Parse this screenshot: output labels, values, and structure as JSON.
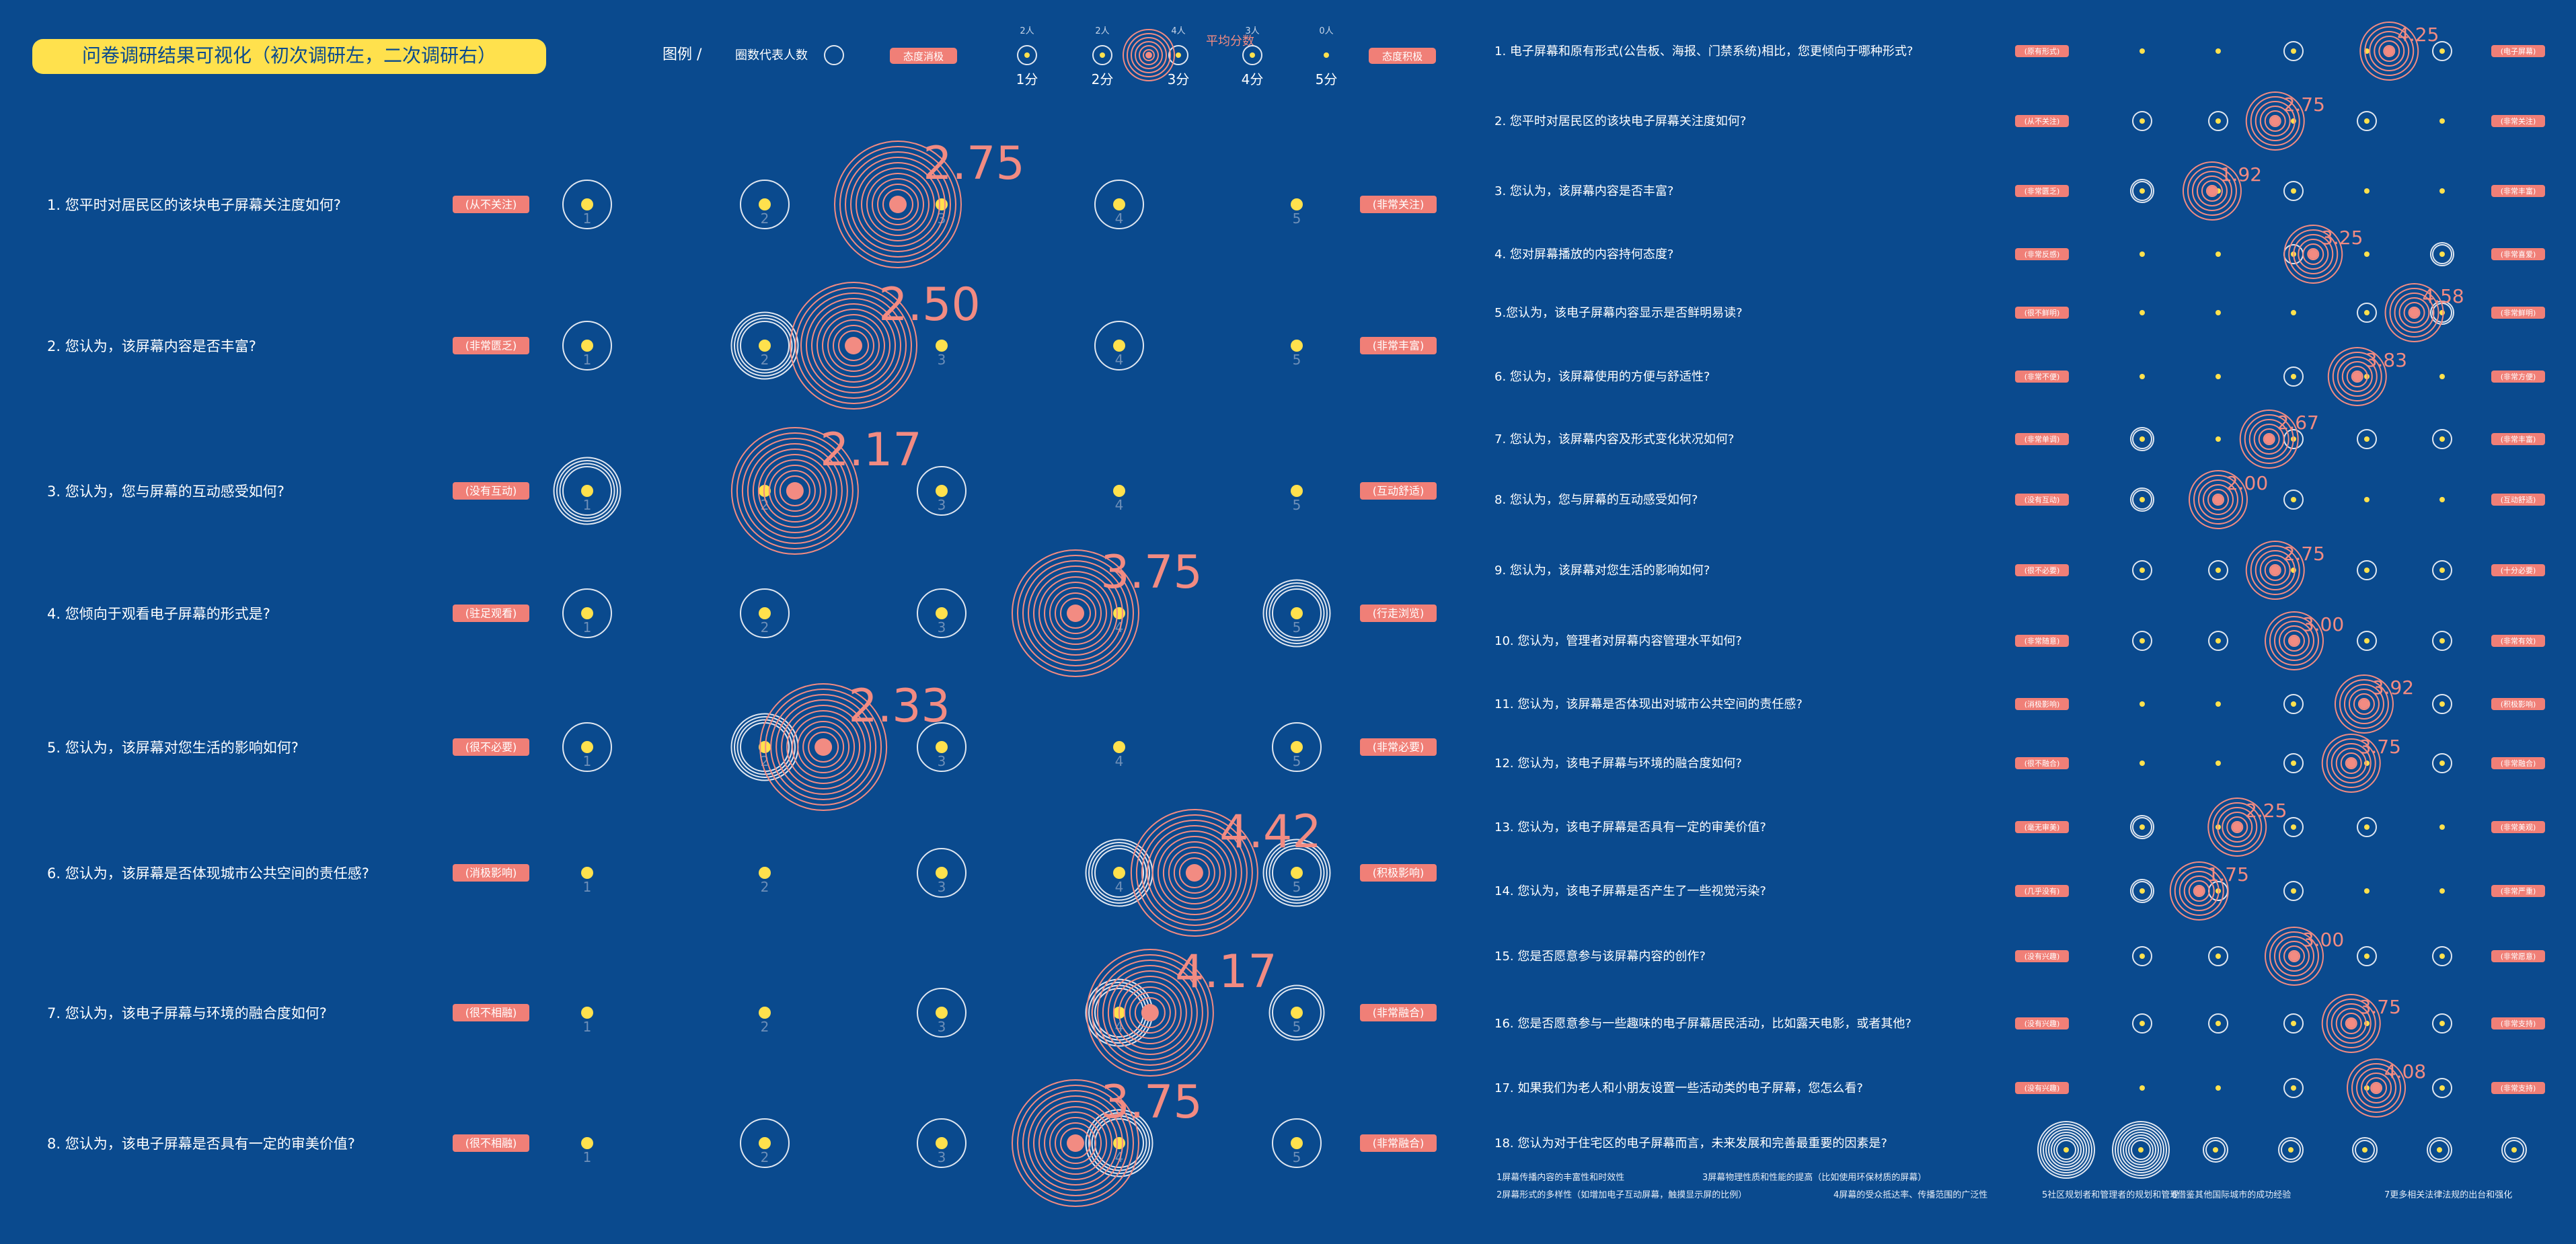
{
  "title": "问卷调研结果可视化（初次调研左，二次调研右）",
  "legend": {
    "label": "图例 /",
    "people_text": "圈数代表人数",
    "neg_label": "态度消极",
    "pos_label": "态度积极",
    "avg_label": "平均分数",
    "score_labels": [
      "1分",
      "2分",
      "3分",
      "4分",
      "5分"
    ],
    "people_labels": [
      "2人",
      "2人",
      "4人",
      "3人",
      "0人"
    ]
  },
  "colors": {
    "background": "#0a4a8e",
    "dot": "#ffe14d",
    "ring_white": "#dfe6f0",
    "ring_salmon": "#f28b82",
    "tag": "#f07f77",
    "title_bg": "#ffe14d",
    "title_text": "#0a4a8e"
  },
  "chart_data": [
    {
      "type": "scatter",
      "title": "初次调研",
      "x_ticks": [
        "1",
        "2",
        "3",
        "4",
        "5"
      ],
      "questions": [
        {
          "label": "1. 您平时对居民区的该块电子屏幕关注度如何?",
          "neg": "(从不关注)",
          "pos": "(非常关注)",
          "counts": [
            1,
            1,
            0,
            1,
            0
          ],
          "avg_rings": 10,
          "avg": 2.75,
          "avg_label": "2.75"
        },
        {
          "label": "2. 您认为，该屏幕内容是否丰富?",
          "neg": "(非常匮乏)",
          "pos": "(非常丰富)",
          "counts": [
            1,
            4,
            0,
            1,
            0
          ],
          "avg_rings": 10,
          "avg": 2.5,
          "avg_label": "2.50"
        },
        {
          "label": "3. 您认为，您与屏幕的互动感受如何?",
          "neg": "(没有互动)",
          "pos": "(互动舒适)",
          "counts": [
            4,
            0,
            1,
            0,
            0
          ],
          "avg_rings": 10,
          "avg": 2.17,
          "avg_label": "2.17"
        },
        {
          "label": "4. 您倾向于观看电子屏幕的形式是?",
          "neg": "(驻足观看)",
          "pos": "(行走浏览)",
          "counts": [
            1,
            1,
            1,
            0,
            4
          ],
          "avg_rings": 10,
          "avg": 3.75,
          "avg_label": "3.75"
        },
        {
          "label": "5. 您认为，该屏幕对您生活的影响如何?",
          "neg": "(很不必要)",
          "pos": "(非常必要)",
          "counts": [
            1,
            4,
            1,
            0,
            1
          ],
          "avg_rings": 10,
          "avg": 2.33,
          "avg_label": "2.33"
        },
        {
          "label": "6. 您认为，该屏幕是否体现城市公共空间的责任感?",
          "neg": "(消极影响)",
          "pos": "(积极影响)",
          "counts": [
            0,
            0,
            1,
            4,
            4
          ],
          "avg_rings": 10,
          "avg": 4.42,
          "avg_label": "4.42"
        },
        {
          "label": "7. 您认为，该电子屏幕与环境的融合度如何?",
          "neg": "(很不相融)",
          "pos": "(非常融合)",
          "counts": [
            0,
            0,
            1,
            4,
            2
          ],
          "avg_rings": 10,
          "avg": 4.17,
          "avg_label": "4.17"
        },
        {
          "label": "8. 您认为，该电子屏幕是否具有一定的审美价值?",
          "neg": "(很不相融)",
          "pos": "(非常融合)",
          "counts": [
            0,
            1,
            1,
            4,
            1
          ],
          "avg_rings": 10,
          "avg": 3.75,
          "avg_label": "3.75"
        }
      ]
    },
    {
      "type": "scatter",
      "title": "二次调研",
      "x_ticks": [
        "1",
        "2",
        "3",
        "4",
        "5",
        "6",
        "7"
      ],
      "questions": [
        {
          "label": "1. 电子屏幕和原有形式(公告板、海报、门禁系统)相比，您更倾向于哪种形式?",
          "neg": "(原有形式)",
          "pos": "(电子屏幕)",
          "counts": [
            0,
            0,
            1,
            0,
            1
          ],
          "avg_rings": 6,
          "avg": 4.25,
          "avg_label": "4.25"
        },
        {
          "label": "2. 您平时对居民区的该块电子屏幕关注度如何?",
          "neg": "(从不关注)",
          "pos": "(非常关注)",
          "counts": [
            1,
            1,
            0,
            1,
            0
          ],
          "avg_rings": 6,
          "avg": 2.75,
          "avg_label": "2.75"
        },
        {
          "label": "3. 您认为，该屏幕内容是否丰富?",
          "neg": "(非常匮乏)",
          "pos": "(非常丰富)",
          "counts": [
            2,
            0,
            1,
            0,
            0
          ],
          "avg_rings": 6,
          "avg": 1.92,
          "avg_label": "1.92"
        },
        {
          "label": "4. 您对屏幕播放的内容持何态度?",
          "neg": "(非常反感)",
          "pos": "(非常喜爱)",
          "counts": [
            0,
            0,
            1,
            0,
            2
          ],
          "avg_rings": 6,
          "avg": 3.25,
          "avg_label": "3.25"
        },
        {
          "label": "5.您认为，该电子屏幕内容显示是否鲜明易读?",
          "neg": "(很不鲜明)",
          "pos": "(非常鲜明)",
          "counts": [
            0,
            0,
            0,
            1,
            2
          ],
          "avg_rings": 6,
          "avg": 4.58,
          "avg_label": "4.58"
        },
        {
          "label": "6. 您认为，该屏幕使用的方便与舒适性?",
          "neg": "(非常不便)",
          "pos": "(非常方便)",
          "counts": [
            0,
            0,
            1,
            0,
            0
          ],
          "avg_rings": 6,
          "avg": 3.83,
          "avg_label": "3.83"
        },
        {
          "label": "7. 您认为，该屏幕内容及形式变化状况如何?",
          "neg": "(非常单调)",
          "pos": "(非常丰富)",
          "counts": [
            2,
            0,
            1,
            1,
            1
          ],
          "avg_rings": 6,
          "avg": 2.67,
          "avg_label": "2.67"
        },
        {
          "label": "8. 您认为，您与屏幕的互动感受如何?",
          "neg": "(没有互动)",
          "pos": "(互动舒适)",
          "counts": [
            2,
            0,
            1,
            0,
            0
          ],
          "avg_rings": 6,
          "avg": 2.0,
          "avg_label": "2.00"
        },
        {
          "label": "9. 您认为，该屏幕对您生活的影响如何?",
          "neg": "(很不必要)",
          "pos": "(十分必要)",
          "counts": [
            1,
            1,
            0,
            1,
            1
          ],
          "avg_rings": 6,
          "avg": 2.75,
          "avg_label": "2.75"
        },
        {
          "label": "10. 您认为，管理者对屏幕内容管理水平如何?",
          "neg": "(非常随意)",
          "pos": "(非常有效)",
          "counts": [
            1,
            1,
            0,
            1,
            1
          ],
          "avg_rings": 6,
          "avg": 3.0,
          "avg_label": "3.00"
        },
        {
          "label": "11. 您认为，该屏幕是否体现出对城市公共空间的责任感?",
          "neg": "(消极影响)",
          "pos": "(积极影响)",
          "counts": [
            0,
            0,
            1,
            0,
            1
          ],
          "avg_rings": 6,
          "avg": 3.92,
          "avg_label": "3.92"
        },
        {
          "label": "12. 您认为，该电子屏幕与环境的融合度如何?",
          "neg": "(很不融合)",
          "pos": "(非常融合)",
          "counts": [
            0,
            0,
            1,
            0,
            1
          ],
          "avg_rings": 6,
          "avg": 3.75,
          "avg_label": "3.75"
        },
        {
          "label": "13. 您认为，该电子屏幕是否具有一定的审美价值?",
          "neg": "(毫无审美)",
          "pos": "(非常美观)",
          "counts": [
            2,
            0,
            1,
            1,
            0
          ],
          "avg_rings": 6,
          "avg": 2.25,
          "avg_label": "2.25"
        },
        {
          "label": "14. 您认为，该电子屏幕是否产生了一些视觉污染?",
          "neg": "(几乎没有)",
          "pos": "(非常严重)",
          "counts": [
            2,
            1,
            1,
            0,
            0
          ],
          "avg_rings": 6,
          "avg": 1.75,
          "avg_label": "1.75"
        },
        {
          "label": "15. 您是否愿意参与该屏幕内容的创作?",
          "neg": "(没有兴趣)",
          "pos": "(非常愿意)",
          "counts": [
            1,
            1,
            0,
            1,
            1
          ],
          "avg_rings": 6,
          "avg": 3.0,
          "avg_label": "3.00"
        },
        {
          "label": "16. 您是否愿意参与一些趣味的电子屏幕居民活动，比如露天电影，或者其他?",
          "neg": "(没有兴趣)",
          "pos": "(非常支持)",
          "counts": [
            1,
            1,
            1,
            0,
            1
          ],
          "avg_rings": 6,
          "avg": 3.75,
          "avg_label": "3.75"
        },
        {
          "label": "17. 如果我们为老人和小朋友设置一些活动类的电子屏幕，您怎么看?",
          "neg": "(没有兴趣)",
          "pos": "(非常支持)",
          "counts": [
            0,
            0,
            1,
            0,
            1
          ],
          "avg_rings": 6,
          "avg": 4.08,
          "avg_label": "4.08"
        },
        {
          "label": "18. 您认为对于住宅区的电子屏幕而言，未来发展和完善最重要的因素是?",
          "neg": "",
          "pos": "",
          "counts": [
            4,
            4,
            1,
            1,
            1,
            1,
            1
          ],
          "avg_rings": 0,
          "avg": null,
          "avg_label": ""
        }
      ],
      "q18_options": [
        "1屏幕传播内容的丰富性和时效性",
        "2屏幕形式的多样性（如增加电子互动屏幕，触摸显示屏的比例）",
        "3屏幕物理性质和性能的提高（比如使用环保材质的屏幕）",
        "4屏幕的受众抵达率、传播范围的广泛性",
        "5社区规划者和管理者的规划和管理",
        "6借鉴其他国际城市的成功经验",
        "7更多相关法律法规的出台和强化"
      ]
    }
  ]
}
